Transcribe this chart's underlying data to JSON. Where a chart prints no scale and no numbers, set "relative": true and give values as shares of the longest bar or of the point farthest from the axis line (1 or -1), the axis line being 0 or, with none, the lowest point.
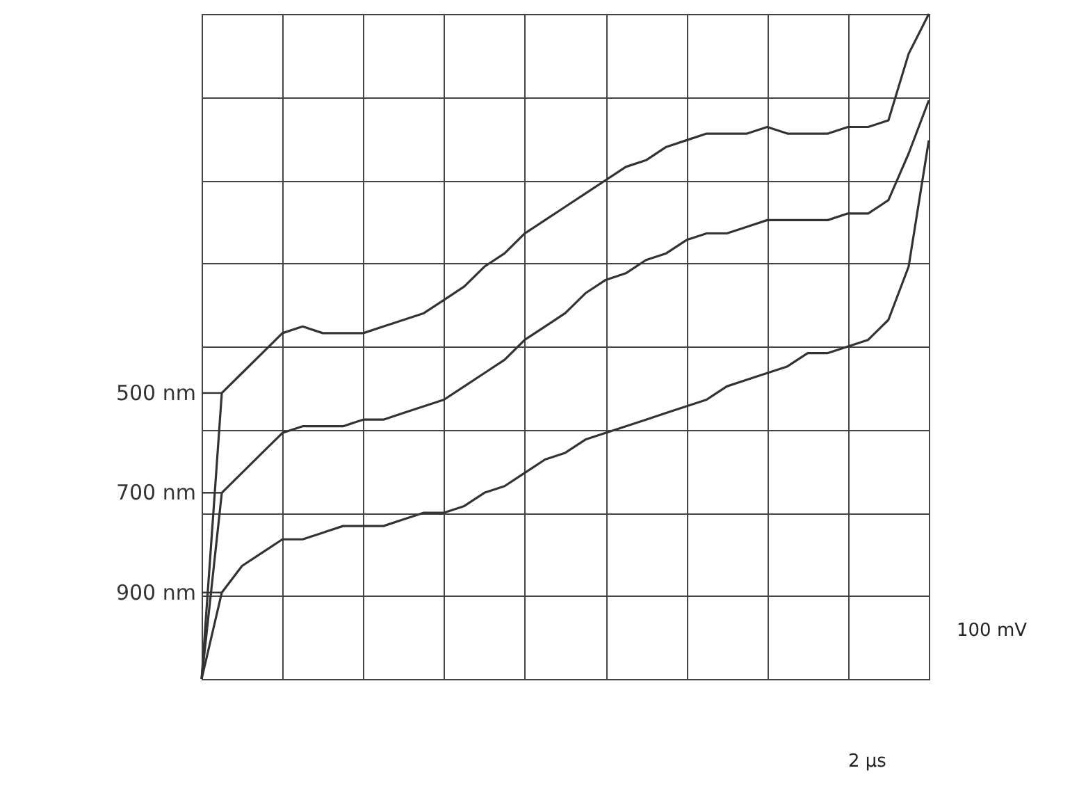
{
  "chart_data": {
    "type": "line",
    "relative": true,
    "grid": true,
    "legend": "left",
    "categories": [
      null,
      null,
      null,
      null,
      null,
      null,
      null,
      null,
      null,
      null,
      null,
      null,
      null,
      null,
      null,
      null,
      null,
      null,
      null,
      null,
      null,
      null,
      null,
      null,
      null,
      null,
      null,
      null,
      null,
      null,
      null,
      null,
      null,
      null,
      null,
      null,
      null
    ],
    "series": [
      {
        "name": "500 nm",
        "color": "#333333",
        "values": [
          0,
          0.43,
          0.46,
          0.49,
          0.52,
          0.53,
          0.52,
          0.52,
          0.52,
          0.53,
          0.54,
          0.55,
          0.57,
          0.59,
          0.62,
          0.64,
          0.67,
          0.69,
          0.71,
          0.73,
          0.75,
          0.77,
          0.78,
          0.8,
          0.81,
          0.82,
          0.82,
          0.82,
          0.83,
          0.82,
          0.82,
          0.82,
          0.83,
          0.83,
          0.84,
          0.94,
          1.0
        ]
      },
      {
        "name": "700 nm",
        "color": "#333333",
        "values": [
          0,
          0.28,
          0.31,
          0.34,
          0.37,
          0.38,
          0.38,
          0.38,
          0.39,
          0.39,
          0.4,
          0.41,
          0.42,
          0.44,
          0.46,
          0.48,
          0.51,
          0.53,
          0.55,
          0.58,
          0.6,
          0.61,
          0.63,
          0.64,
          0.66,
          0.67,
          0.67,
          0.68,
          0.69,
          0.69,
          0.69,
          0.69,
          0.7,
          0.7,
          0.72,
          0.79,
          0.87
        ]
      },
      {
        "name": "900 nm",
        "color": "#333333",
        "values": [
          0,
          0.13,
          0.17,
          0.19,
          0.21,
          0.21,
          0.22,
          0.23,
          0.23,
          0.23,
          0.24,
          0.25,
          0.25,
          0.26,
          0.28,
          0.29,
          0.31,
          0.33,
          0.34,
          0.36,
          0.37,
          0.38,
          0.39,
          0.4,
          0.41,
          0.42,
          0.44,
          0.45,
          0.46,
          0.47,
          0.49,
          0.49,
          0.5,
          0.51,
          0.54,
          0.62,
          0.81
        ]
      }
    ],
    "annotations": [
      "100 mV",
      "2 µs"
    ]
  }
}
